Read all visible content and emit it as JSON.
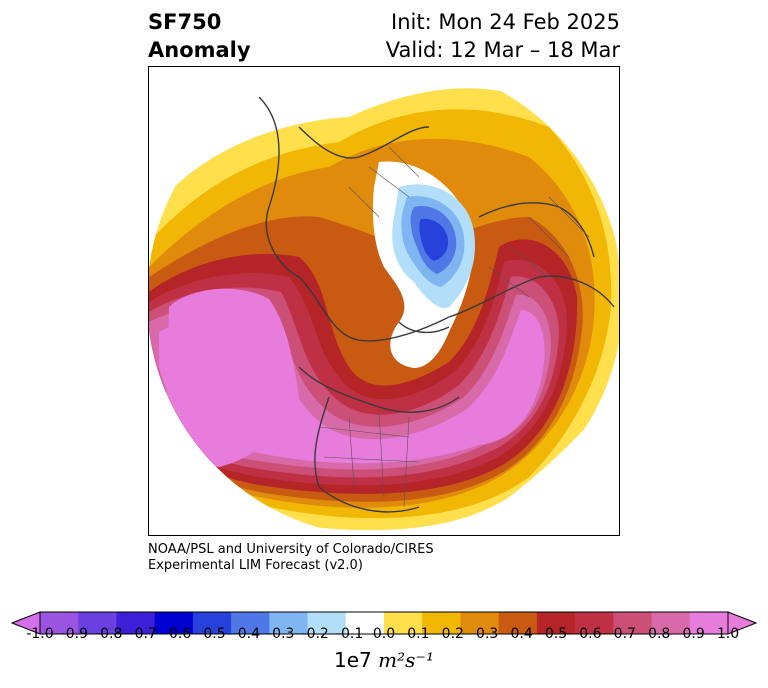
{
  "header": {
    "field": "SF750",
    "kind": "Anomaly",
    "init": "Init: Mon 24 Feb 2025",
    "valid": "Valid: 12 Mar – 18 Mar"
  },
  "credit": {
    "line1": "NOAA/PSL and University of Colorado/CIRES",
    "line2": "Experimental LIM Forecast (v2.0)"
  },
  "colorbar": {
    "units_prefix": "1e7",
    "units_expr": "m²s⁻¹",
    "ticks": [
      "-1.0",
      "-0.9",
      "-0.8",
      "-0.7",
      "-0.6",
      "-0.5",
      "-0.4",
      "-0.3",
      "-0.2",
      "-0.1",
      "0.0",
      "0.1",
      "0.2",
      "0.3",
      "0.4",
      "0.5",
      "0.6",
      "0.7",
      "0.8",
      "0.9",
      "1.0"
    ],
    "colors": [
      "#9b54e0",
      "#6b3fe0",
      "#3c1fd6",
      "#0000d0",
      "#2642da",
      "#4f78e6",
      "#7fb6f2",
      "#b3def9",
      "#ffffff",
      "#ffe04c",
      "#f2b705",
      "#e08b0c",
      "#c85a12",
      "#b52426",
      "#c03045",
      "#cc4f78",
      "#d86aaa",
      "#e87cdd"
    ],
    "under_color": "#d46eea",
    "over_color": "#e87cdd"
  },
  "map": {
    "projection": "polar-stereographic",
    "colors": {
      "pink": "#e87cdd",
      "pink2": "#d86aaa",
      "rose": "#cc4f78",
      "crimson": "#c03045",
      "red": "#b52426",
      "orange_dark": "#c85a12",
      "orange": "#e08b0c",
      "gold": "#f2b705",
      "yellow": "#ffe04c",
      "blue_light": "#b3def9",
      "blue_mid": "#7fb6f2",
      "blue": "#4f78e6",
      "blue_dark": "#2642da"
    }
  }
}
